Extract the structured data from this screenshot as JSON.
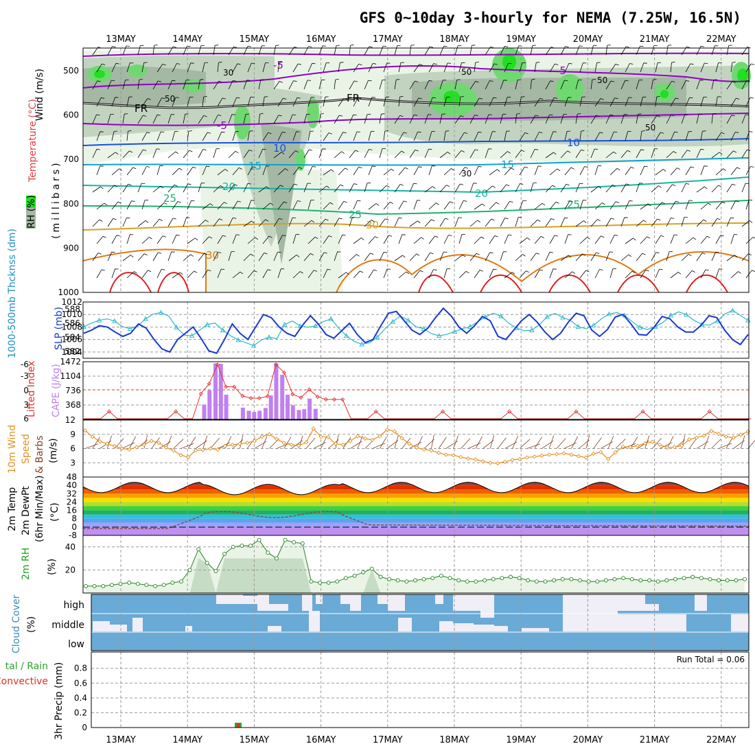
{
  "title": "GFS 0~10day 3-hourly for NEMA (7.25W, 16.5N)",
  "dates": [
    "13MAY",
    "14MAY",
    "15MAY",
    "16MAY",
    "17MAY",
    "18MAY",
    "19MAY",
    "20MAY",
    "21MAY",
    "22MAY"
  ],
  "colors": {
    "rh_light": "#eaf4e6",
    "rh_mid": "#c2d4c0",
    "rh_dark": "#a4b8a4",
    "rh_green": "#70d870",
    "rh_bright": "#20e020",
    "purple": "#9000c0",
    "blue1": "#1850d8",
    "cyan": "#10a0c8",
    "teal": "#18b4a0",
    "green": "#20b070",
    "gold": "#d8a020",
    "orange": "#e07810",
    "red": "#e02020",
    "slp": "#1838d0",
    "thick": "#28b8c8",
    "cape": "#c080f0",
    "li": "#e03030",
    "wind": "#e09020",
    "barb": "#804020",
    "cloud": "#6aaad6",
    "precip_total": "#30a030",
    "precip_conv": "#e03020"
  },
  "panels": {
    "upper": {
      "ylabel_wind": "Wind (m/s)",
      "ylabel_temp": "Temperature (°C)",
      "ylabel_rh": "RH (%)",
      "ylabel_p": "(millibars)",
      "yticks": [
        "500",
        "600",
        "700",
        "800",
        "900",
        "1000"
      ],
      "labels": {
        "fr1": "FR",
        "fr2": "FR",
        "m5a": "-5",
        "m5b": "-5",
        "m5c": "-5",
        "t10a": "10",
        "t10b": "10",
        "t15a": "15",
        "t15b": "15",
        "t20a": "20",
        "t20b": "20",
        "t25a": "25",
        "t25b": "25",
        "t25c": "25",
        "t30a": "30",
        "t30b": "30",
        "rh30a": "30",
        "rh30b": "30",
        "rh50a": "50",
        "rh50b": "50",
        "rh50c": "50",
        "rh50d": "50"
      }
    },
    "slp": {
      "ylabel_thick": "1000-500mb Thcknss (dm)",
      "ylabel_slp": "SLP (mb)",
      "yticks_left": [
        "588",
        "586",
        "584",
        "582"
      ],
      "yticks_right": [
        "1012",
        "1010",
        "1008",
        "1006",
        "1004"
      ]
    },
    "cape": {
      "ylabel_li": "Lifted Index",
      "ylabel_cape": "CAPE (J/kg)",
      "yticks_left": [
        "-6",
        "-3",
        "0",
        "3",
        "6"
      ],
      "yticks_right": [
        "1472",
        "1104",
        "736",
        "368"
      ]
    },
    "wind": {
      "ylabel1": "10m Wind",
      "ylabel2": "Speed",
      "ylabel3": "& Barbs",
      "unit": "(m/s)",
      "yticks": [
        "12",
        "9",
        "6",
        "3"
      ]
    },
    "temp": {
      "ylabel1": "2m Temp",
      "ylabel2": "2m DewPt",
      "ylabel3": "(6hr Min/Max)",
      "unit": "(°C)",
      "yticks": [
        "48",
        "40",
        "32",
        "24",
        "16",
        "8",
        "0",
        "-8"
      ]
    },
    "rh": {
      "ylabel": "2m RH",
      "unit": "(%)",
      "yticks": [
        "40",
        "20"
      ]
    },
    "cloud": {
      "ylabel": "Cloud Cover",
      "unit": "(%)",
      "levels": [
        "high",
        "middle",
        "low"
      ]
    },
    "precip": {
      "ylabel1": "tal / Rain",
      "ylabel2": "Convective",
      "ylabel3": "3hr Precip (mm)",
      "yticks": [
        "0.8",
        "0.6",
        "0.4",
        "0.2",
        "0"
      ],
      "run_total": "Run Total = 0.06"
    }
  },
  "chart_data": [
    {
      "type": "line",
      "name": "upper-air",
      "xlabel": "",
      "ylabel": "millibars",
      "yticks": [
        500,
        600,
        700,
        800,
        900,
        1000
      ],
      "note_values": "temperature isotherms -5..35 °C, freezing level near 590 mb"
    },
    {
      "type": "line",
      "panel": "slp",
      "series": [
        {
          "name": "SLP (mb)",
          "ylim": [
            1003,
            1012
          ],
          "values": [
            1007,
            1007.5,
            1008.2,
            1008,
            1007.2,
            1006.5,
            1007,
            1008.5,
            1007.8,
            1006,
            1004.5,
            1004,
            1006,
            1007,
            1008,
            1006.2,
            1004.2,
            1003.8,
            1006,
            1008.5,
            1007,
            1006,
            1008,
            1010,
            1009.5,
            1008,
            1007,
            1006.5,
            1008.3,
            1009.8,
            1008.5,
            1006.8,
            1006.2,
            1007.4,
            1008.6,
            1006.8,
            1005.5,
            1006,
            1008.2,
            1010.2,
            1010.5,
            1009,
            1007.5,
            1006.8,
            1007.8,
            1009.5,
            1011,
            1009.8,
            1008,
            1007,
            1008.2,
            1009.7,
            1009,
            1006.5,
            1006,
            1007.5,
            1009,
            1010,
            1008.8,
            1007.2,
            1006,
            1007,
            1008.8,
            1010.2,
            1009.8,
            1007.5,
            1006.5,
            1007.6,
            1009.6,
            1010,
            1008.5,
            1006.8,
            1006.7,
            1008,
            1009.7,
            1009.3,
            1008,
            1007.2,
            1007.2,
            1008.3,
            1009.8,
            1009.5,
            1007.5,
            1006,
            1005.2,
            1006.8
          ]
        },
        {
          "name": "Thickness (dm)",
          "ylim": [
            581,
            589
          ],
          "values": [
            585.5,
            586,
            586.4,
            586.6,
            586.3,
            585.5,
            585.2,
            585.6,
            586.6,
            587.3,
            587.5,
            587,
            585.4,
            584.3,
            584.2,
            585,
            585.8,
            586,
            585,
            584.2,
            583.6,
            583.2,
            582.8,
            583.6,
            584,
            583.8,
            585.8,
            586.3,
            585.6,
            585.4,
            585.6,
            586.2,
            586.6,
            585.3,
            584.2,
            583.4,
            583,
            583.2,
            584,
            585.2,
            586.2,
            587,
            586.4,
            585.5,
            585.2,
            584.5,
            584.2,
            584.4,
            584.8,
            585.2,
            585.5,
            586.2,
            586.9,
            587.4,
            587,
            586,
            585.3,
            584.9,
            585,
            585.8,
            586.9,
            587.4,
            586.8,
            586.4,
            585.5,
            585.2,
            585.7,
            586.6,
            587.3,
            587.5,
            587.1,
            586.2,
            585.4,
            585.1,
            585.5,
            586.1,
            587.1,
            587.6,
            587.2,
            586.4,
            585.8,
            585.7,
            586.3,
            587.3,
            587.8,
            587.1,
            586.4
          ]
        }
      ]
    },
    {
      "type": "bar",
      "panel": "cape",
      "series": [
        {
          "name": "CAPE (J/kg)",
          "ylim": [
            0,
            1472
          ],
          "x": [
            14.25,
            14.33,
            14.42,
            14.5,
            14.58,
            14.83,
            14.92,
            15.0,
            15.08,
            15.17,
            15.25,
            15.33,
            15.42,
            15.5,
            15.58,
            15.67,
            15.75,
            15.83,
            15.92,
            16.0,
            16.08
          ],
          "values": [
            380,
            740,
            1430,
            1420,
            630,
            300,
            220,
            190,
            220,
            290,
            610,
            1430,
            1140,
            630,
            360,
            240,
            260,
            530,
            270,
            0,
            0
          ]
        },
        {
          "name": "Lifted Index",
          "ylim": [
            6,
            -6
          ],
          "values_note": "line between -5 and 6 following CAPE"
        }
      ]
    },
    {
      "type": "line",
      "panel": "wind",
      "name": "10m Wind Speed (m/s)",
      "ylim": [
        0,
        12
      ],
      "values": [
        9.8,
        8.5,
        7.5,
        7.0,
        6.5,
        6.0,
        5.8,
        6.3,
        6.8,
        7.6,
        7.2,
        6.2,
        5.6,
        4.6,
        4.2,
        5.6,
        5.7,
        6.0,
        5.8,
        6.5,
        6.8,
        7.0,
        7.2,
        7.6,
        8.5,
        9.0,
        8.0,
        7.2,
        6.8,
        6.6,
        7.3,
        10.2,
        8.5,
        8.4,
        7.0,
        6.8,
        7.6,
        8.6,
        8.1,
        7.8,
        8.6,
        10.0,
        9.6,
        8.2,
        7.0,
        6.2,
        5.8,
        5.6,
        5.1,
        4.7,
        4.6,
        4.2,
        3.9,
        3.7,
        3.3,
        3.0,
        2.9,
        3.2,
        3.6,
        3.8,
        4.1,
        4.3,
        4.5,
        4.7,
        4.8,
        5.0,
        4.7,
        4.4,
        4.1,
        4.9,
        5.2,
        3.8,
        5.2,
        6.4,
        6.3,
        6.6,
        7.1,
        7.4,
        6.8,
        6.2,
        6.3,
        6.6,
        7.9,
        8.3,
        8.7,
        9.7,
        9.1,
        8.5,
        8.3,
        8.9,
        9.6
      ]
    },
    {
      "type": "area",
      "panel": "temp",
      "series": [
        {
          "name": "2m Temp max envelope (°C)",
          "ylim": [
            -8,
            48
          ],
          "values_note": "diurnal 32 to 44"
        },
        {
          "name": "2m DewPt (°C)",
          "values_note": "-2 rising to 18 on 14-16 MAY then 2"
        }
      ]
    },
    {
      "type": "area",
      "panel": "rh",
      "name": "2m RH (%)",
      "ylim": [
        0,
        50
      ],
      "values": [
        6,
        6,
        6,
        7,
        8,
        9,
        8,
        7,
        6,
        7,
        9,
        10,
        20,
        38,
        26,
        19,
        34,
        40,
        41,
        41,
        46,
        35,
        30,
        46,
        44,
        43,
        10,
        9,
        9,
        10,
        13,
        15,
        18,
        21,
        14,
        12,
        11,
        10,
        11,
        12,
        13,
        15,
        13,
        11,
        10,
        10,
        11,
        12,
        13,
        14,
        13,
        11,
        10,
        10,
        11,
        12,
        12,
        11,
        10,
        10,
        11,
        12,
        13,
        12,
        11,
        11,
        10,
        11,
        12,
        13,
        14,
        13,
        12,
        11,
        11,
        11,
        12
      ]
    },
    {
      "type": "area",
      "panel": "cloud",
      "name": "Cloud Cover (%)",
      "categories": [
        "high",
        "middle",
        "low"
      ]
    },
    {
      "type": "bar",
      "panel": "precip",
      "name": "3hr Precip (mm)",
      "ylim": [
        0,
        1
      ],
      "x": [
        "14.75"
      ],
      "values": [
        0.06
      ]
    }
  ]
}
